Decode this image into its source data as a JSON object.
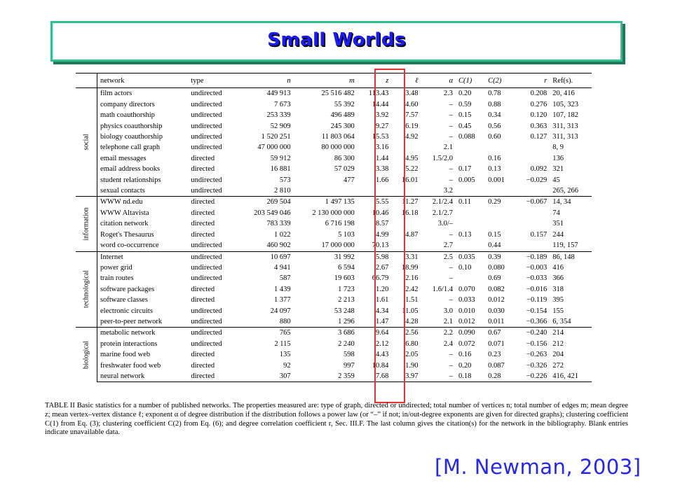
{
  "slide": {
    "title": "Small Worlds",
    "citation": "[M. Newman, 2003]"
  },
  "table": {
    "headers": {
      "network": "network",
      "type": "type",
      "n": "n",
      "m": "m",
      "z": "z",
      "ell": "ℓ",
      "alpha": "α",
      "c1": "C(1)",
      "c2": "C(2)",
      "r": "r",
      "refs": "Ref(s)."
    },
    "groups": [
      {
        "label": "social",
        "rows": [
          {
            "network": "film actors",
            "type": "undirected",
            "n": "449 913",
            "m": "25 516 482",
            "z": "113.43",
            "l": "3.48",
            "alpha": "2.3",
            "c1": "0.20",
            "c2": "0.78",
            "r": "0.208",
            "refs": "20, 416"
          },
          {
            "network": "company directors",
            "type": "undirected",
            "n": "7 673",
            "m": "55 392",
            "z": "14.44",
            "l": "4.60",
            "alpha": "–",
            "c1": "0.59",
            "c2": "0.88",
            "r": "0.276",
            "refs": "105, 323"
          },
          {
            "network": "math coauthorship",
            "type": "undirected",
            "n": "253 339",
            "m": "496 489",
            "z": "3.92",
            "l": "7.57",
            "alpha": "–",
            "c1": "0.15",
            "c2": "0.34",
            "r": "0.120",
            "refs": "107, 182"
          },
          {
            "network": "physics coauthorship",
            "type": "undirected",
            "n": "52 909",
            "m": "245 300",
            "z": "9.27",
            "l": "6.19",
            "alpha": "–",
            "c1": "0.45",
            "c2": "0.56",
            "r": "0.363",
            "refs": "311, 313"
          },
          {
            "network": "biology coauthorship",
            "type": "undirected",
            "n": "1 520 251",
            "m": "11 803 064",
            "z": "15.53",
            "l": "4.92",
            "alpha": "–",
            "c1": "0.088",
            "c2": "0.60",
            "r": "0.127",
            "refs": "311, 313"
          },
          {
            "network": "telephone call graph",
            "type": "undirected",
            "n": "47 000 000",
            "m": "80 000 000",
            "z": "3.16",
            "l": "",
            "alpha": "2.1",
            "c1": "",
            "c2": "",
            "r": "",
            "refs": "8, 9"
          },
          {
            "network": "email messages",
            "type": "directed",
            "n": "59 912",
            "m": "86 300",
            "z": "1.44",
            "l": "4.95",
            "alpha": "1.5/2.0",
            "c1": "",
            "c2": "0.16",
            "r": "",
            "refs": "136"
          },
          {
            "network": "email address books",
            "type": "directed",
            "n": "16 881",
            "m": "57 029",
            "z": "3.38",
            "l": "5.22",
            "alpha": "–",
            "c1": "0.17",
            "c2": "0.13",
            "r": "0.092",
            "refs": "321"
          },
          {
            "network": "student relationships",
            "type": "undirected",
            "n": "573",
            "m": "477",
            "z": "1.66",
            "l": "16.01",
            "alpha": "–",
            "c1": "0.005",
            "c2": "0.001",
            "r": "−0.029",
            "refs": "45"
          },
          {
            "network": "sexual contacts",
            "type": "undirected",
            "n": "2 810",
            "m": "",
            "z": "",
            "l": "",
            "alpha": "3.2",
            "c1": "",
            "c2": "",
            "r": "",
            "refs": "265, 266"
          }
        ]
      },
      {
        "label": "information",
        "rows": [
          {
            "network": "WWW nd.edu",
            "type": "directed",
            "n": "269 504",
            "m": "1 497 135",
            "z": "5.55",
            "l": "11.27",
            "alpha": "2.1/2.4",
            "c1": "0.11",
            "c2": "0.29",
            "r": "−0.067",
            "refs": "14, 34"
          },
          {
            "network": "WWW Altavista",
            "type": "directed",
            "n": "203 549 046",
            "m": "2 130 000 000",
            "z": "10.46",
            "l": "16.18",
            "alpha": "2.1/2.7",
            "c1": "",
            "c2": "",
            "r": "",
            "refs": "74"
          },
          {
            "network": "citation network",
            "type": "directed",
            "n": "783 339",
            "m": "6 716 198",
            "z": "8.57",
            "l": "",
            "alpha": "3.0/–",
            "c1": "",
            "c2": "",
            "r": "",
            "refs": "351"
          },
          {
            "network": "Roget's Thesaurus",
            "type": "directed",
            "n": "1 022",
            "m": "5 103",
            "z": "4.99",
            "l": "4.87",
            "alpha": "–",
            "c1": "0.13",
            "c2": "0.15",
            "r": "0.157",
            "refs": "244"
          },
          {
            "network": "word co-occurrence",
            "type": "undirected",
            "n": "460 902",
            "m": "17 000 000",
            "z": "70.13",
            "l": "",
            "alpha": "2.7",
            "c1": "",
            "c2": "0.44",
            "r": "",
            "refs": "119, 157"
          }
        ]
      },
      {
        "label": "technological",
        "rows": [
          {
            "network": "Internet",
            "type": "undirected",
            "n": "10 697",
            "m": "31 992",
            "z": "5.98",
            "l": "3.31",
            "alpha": "2.5",
            "c1": "0.035",
            "c2": "0.39",
            "r": "−0.189",
            "refs": "86, 148"
          },
          {
            "network": "power grid",
            "type": "undirected",
            "n": "4 941",
            "m": "6 594",
            "z": "2.67",
            "l": "18.99",
            "alpha": "–",
            "c1": "0.10",
            "c2": "0.080",
            "r": "−0.003",
            "refs": "416"
          },
          {
            "network": "train routes",
            "type": "undirected",
            "n": "587",
            "m": "19 603",
            "z": "66.79",
            "l": "2.16",
            "alpha": "–",
            "c1": "",
            "c2": "0.69",
            "r": "−0.033",
            "refs": "366"
          },
          {
            "network": "software packages",
            "type": "directed",
            "n": "1 439",
            "m": "1 723",
            "z": "1.20",
            "l": "2.42",
            "alpha": "1.6/1.4",
            "c1": "0.070",
            "c2": "0.082",
            "r": "−0.016",
            "refs": "318"
          },
          {
            "network": "software classes",
            "type": "directed",
            "n": "1 377",
            "m": "2 213",
            "z": "1.61",
            "l": "1.51",
            "alpha": "–",
            "c1": "0.033",
            "c2": "0.012",
            "r": "−0.119",
            "refs": "395"
          },
          {
            "network": "electronic circuits",
            "type": "undirected",
            "n": "24 097",
            "m": "53 248",
            "z": "4.34",
            "l": "11.05",
            "alpha": "3.0",
            "c1": "0.010",
            "c2": "0.030",
            "r": "−0.154",
            "refs": "155"
          },
          {
            "network": "peer-to-peer network",
            "type": "undirected",
            "n": "880",
            "m": "1 296",
            "z": "1.47",
            "l": "4.28",
            "alpha": "2.1",
            "c1": "0.012",
            "c2": "0.011",
            "r": "−0.366",
            "refs": "6, 354"
          }
        ]
      },
      {
        "label": "biological",
        "rows": [
          {
            "network": "metabolic network",
            "type": "undirected",
            "n": "765",
            "m": "3 686",
            "z": "9.64",
            "l": "2.56",
            "alpha": "2.2",
            "c1": "0.090",
            "c2": "0.67",
            "r": "−0.240",
            "refs": "214"
          },
          {
            "network": "protein interactions",
            "type": "undirected",
            "n": "2 115",
            "m": "2 240",
            "z": "2.12",
            "l": "6.80",
            "alpha": "2.4",
            "c1": "0.072",
            "c2": "0.071",
            "r": "−0.156",
            "refs": "212"
          },
          {
            "network": "marine food web",
            "type": "directed",
            "n": "135",
            "m": "598",
            "z": "4.43",
            "l": "2.05",
            "alpha": "–",
            "c1": "0.16",
            "c2": "0.23",
            "r": "−0.263",
            "refs": "204"
          },
          {
            "network": "freshwater food web",
            "type": "directed",
            "n": "92",
            "m": "997",
            "z": "10.84",
            "l": "1.90",
            "alpha": "–",
            "c1": "0.20",
            "c2": "0.087",
            "r": "−0.326",
            "refs": "272"
          },
          {
            "network": "neural network",
            "type": "directed",
            "n": "307",
            "m": "2 359",
            "z": "7.68",
            "l": "3.97",
            "alpha": "–",
            "c1": "0.18",
            "c2": "0.28",
            "r": "−0.226",
            "refs": "416, 421"
          }
        ]
      }
    ],
    "caption": "TABLE II Basic statistics for a number of published networks. The properties measured are: type of graph, directed or undirected; total number of vertices n; total number of edges m; mean degree z; mean vertex–vertex distance ℓ; exponent α of degree distribution if the distribution follows a power law (or “–” if not; in/out-degree exponents are given for directed graphs); clustering coefficient C(1) from Eq. (3); clustering coefficient C(2) from Eq. (6); and degree correlation coefficient r, Sec. III.F. The last column gives the citation(s) for the network in the bibliography. Blank entries indicate unavailable data."
  },
  "colors": {
    "title_text": "#1a1aff",
    "title_border": "#2fbf8a",
    "highlight_box": "#e53333",
    "citation_text": "#2424ff"
  }
}
